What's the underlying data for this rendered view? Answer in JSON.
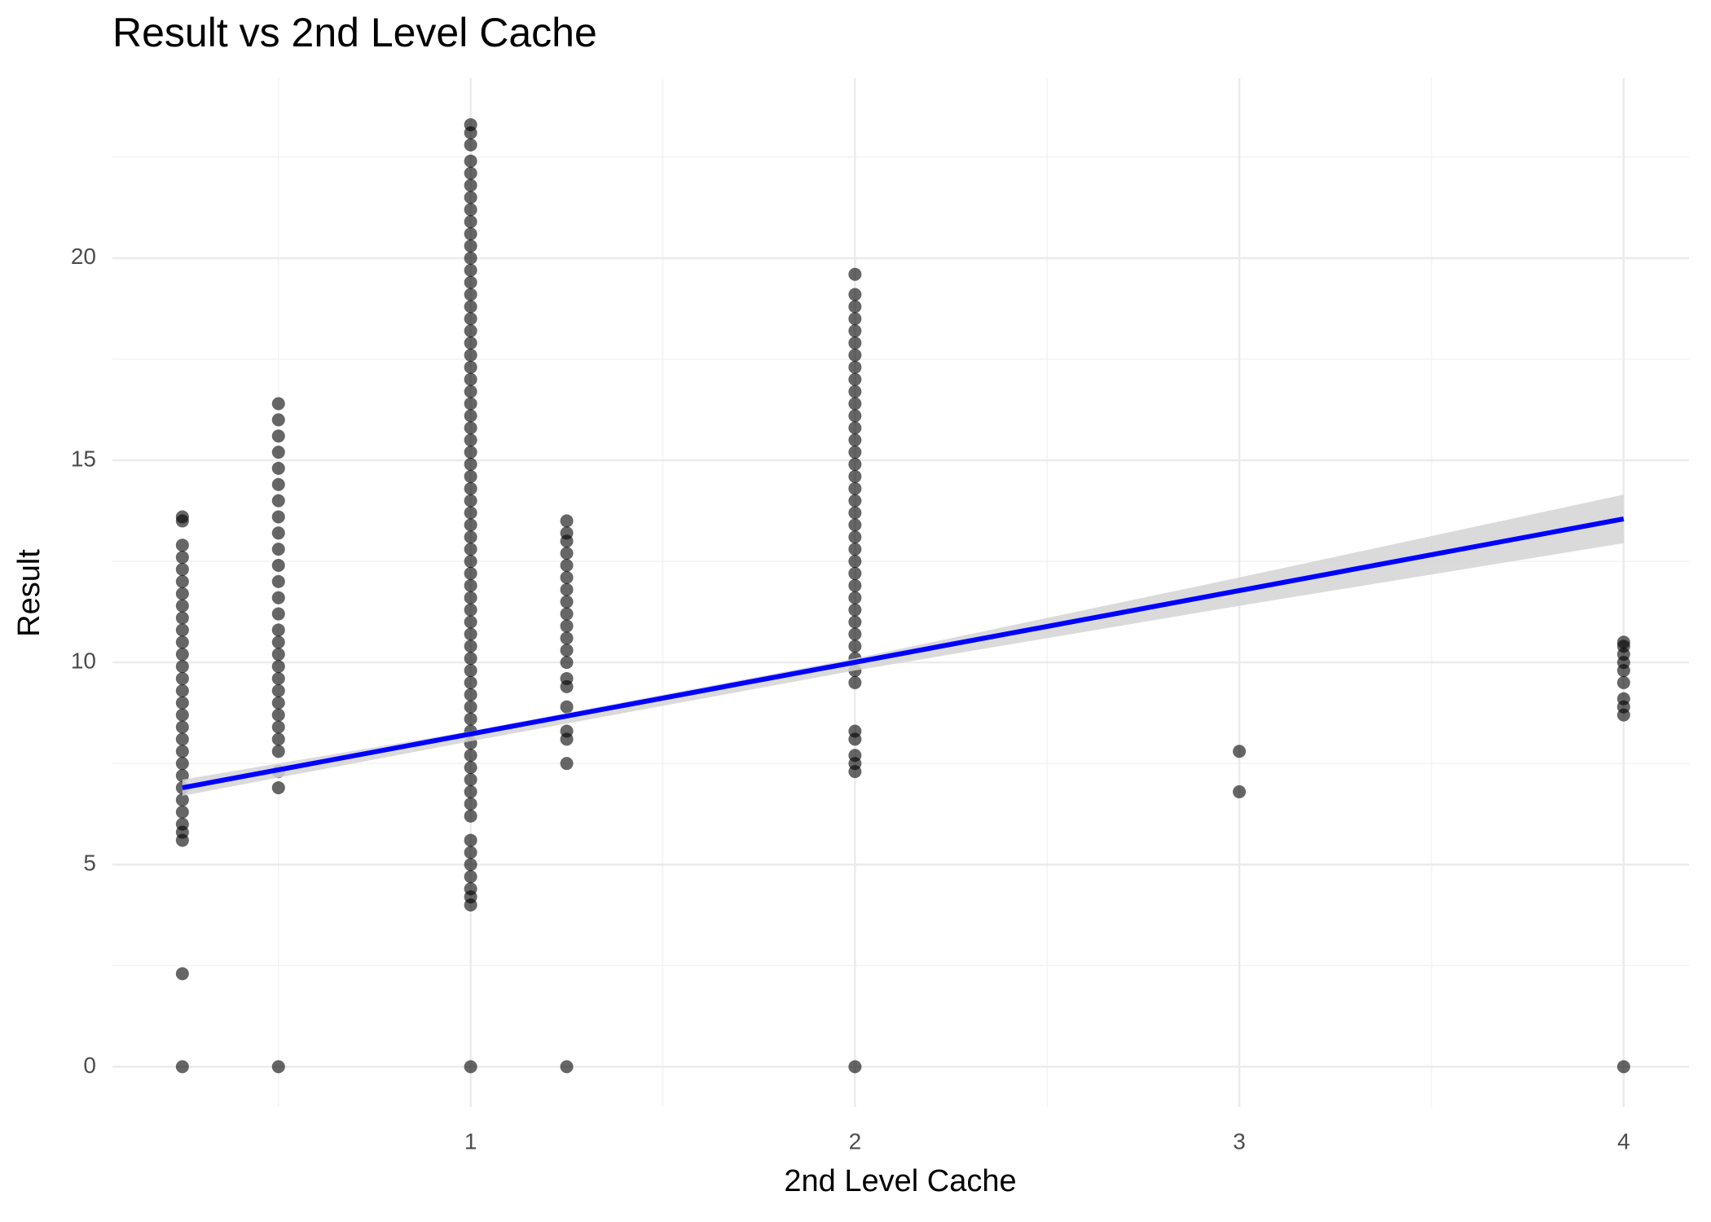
{
  "chart_data": {
    "type": "scatter",
    "title": "Result vs 2nd Level Cache",
    "x_label": "2nd Level Cache",
    "y_label": "Result",
    "xlim": [
      0.068,
      4.17
    ],
    "ylim": [
      -1,
      24.45
    ],
    "xticks": [
      1,
      2,
      3,
      4
    ],
    "yticks": [
      0,
      5,
      10,
      15,
      20
    ],
    "x_minor_grid": [
      0.5,
      1.5,
      2.5,
      3.5
    ],
    "y_minor_grid": [
      2.5,
      7.5,
      12.5,
      17.5,
      22.5
    ],
    "grid": true,
    "point_color": "#000000",
    "groups": [
      {
        "x": 0.25,
        "values": [
          0,
          2.3,
          5.6,
          5.8,
          6.0,
          6.3,
          6.6,
          6.9,
          7.2,
          7.5,
          7.8,
          8.1,
          8.4,
          8.7,
          9.0,
          9.3,
          9.6,
          9.9,
          10.2,
          10.5,
          10.8,
          11.1,
          11.4,
          11.7,
          12.0,
          12.3,
          12.6,
          12.9,
          13.5,
          13.6
        ]
      },
      {
        "x": 0.5,
        "values": [
          0,
          6.9,
          7.3,
          7.8,
          8.1,
          8.4,
          8.7,
          9.0,
          9.3,
          9.6,
          9.9,
          10.2,
          10.5,
          10.8,
          11.2,
          11.6,
          12.0,
          12.4,
          12.8,
          13.2,
          13.6,
          14.0,
          14.4,
          14.8,
          15.2,
          15.6,
          16.0,
          16.4
        ]
      },
      {
        "x": 1,
        "values": [
          0,
          4.0,
          4.2,
          4.4,
          4.7,
          5.0,
          5.3,
          5.6,
          6.2,
          6.5,
          6.8,
          7.1,
          7.4,
          7.7,
          8.0,
          8.3,
          8.6,
          8.9,
          9.2,
          9.5,
          9.8,
          10.1,
          10.4,
          10.7,
          11.0,
          11.3,
          11.6,
          11.9,
          12.2,
          12.5,
          12.8,
          13.1,
          13.4,
          13.7,
          14.0,
          14.3,
          14.6,
          14.9,
          15.2,
          15.5,
          15.8,
          16.1,
          16.4,
          16.7,
          17.0,
          17.3,
          17.6,
          17.9,
          18.2,
          18.5,
          18.8,
          19.1,
          19.4,
          19.7,
          20.0,
          20.3,
          20.6,
          20.9,
          21.2,
          21.5,
          21.8,
          22.1,
          22.4,
          22.8,
          23.1,
          23.3
        ]
      },
      {
        "x": 1.25,
        "values": [
          0,
          7.5,
          8.1,
          8.3,
          8.9,
          9.4,
          9.6,
          10.0,
          10.3,
          10.6,
          10.9,
          11.2,
          11.5,
          11.8,
          12.1,
          12.4,
          12.7,
          13.0,
          13.2,
          13.5
        ]
      },
      {
        "x": 2,
        "values": [
          0,
          7.3,
          7.5,
          7.7,
          8.1,
          8.3,
          9.5,
          9.8,
          10.1,
          10.4,
          10.7,
          11.0,
          11.3,
          11.6,
          11.9,
          12.2,
          12.5,
          12.8,
          13.1,
          13.4,
          13.7,
          14.0,
          14.3,
          14.6,
          14.9,
          15.2,
          15.5,
          15.8,
          16.1,
          16.4,
          16.7,
          17.0,
          17.3,
          17.6,
          17.9,
          18.2,
          18.5,
          18.8,
          19.1,
          19.6
        ]
      },
      {
        "x": 3,
        "values": [
          6.8,
          7.8
        ]
      },
      {
        "x": 4,
        "values": [
          0,
          8.7,
          8.9,
          9.1,
          9.5,
          9.8,
          10.0,
          10.2,
          10.4,
          10.5
        ]
      }
    ],
    "fit": {
      "color": "#0000ff",
      "x": [
        0.25,
        4
      ],
      "y": [
        6.9,
        13.55
      ]
    },
    "band": {
      "color": "#d3d3d3",
      "x": [
        0.25,
        1,
        2,
        3,
        4
      ],
      "lower": [
        6.7,
        8.05,
        9.8,
        11.4,
        12.95
      ],
      "upper": [
        7.1,
        8.3,
        10.1,
        12.1,
        14.15
      ]
    }
  }
}
